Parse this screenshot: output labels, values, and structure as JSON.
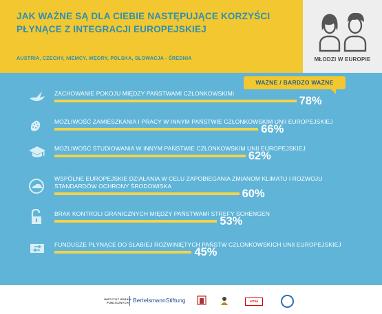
{
  "header": {
    "title": "JAK WAŻNE SĄ DLA CIEBIE NASTĘPUJĄCE KORZYŚCI PŁYNĄCE Z INTEGRACJI EUROPEJSKIEJ",
    "subtitle": "AUSTRIA, CZECHY, NIEMCY, WĘGRY, POLSKA, SŁOWACJA - ŚREDNIA"
  },
  "brand": {
    "label": "MŁODZI W EUROPIE"
  },
  "legend": {
    "label": "WAŻNE / BARDZO WAŻNE"
  },
  "colors": {
    "header": "#f2c72f",
    "panel": "#5fb4d8",
    "bar": "#f2d34a",
    "title": "#2f8fb3"
  },
  "chart_data": {
    "type": "bar",
    "orientation": "horizontal",
    "title": "JAK WAŻNE SĄ DLA CIEBIE NASTĘPUJĄCE KORZYŚCI PŁYNĄCE Z INTEGRACJI EUROPEJSKIEJ",
    "subtitle": "AUSTRIA, CZECHY, NIEMCY, WĘGRY, POLSKA, SŁOWACJA - ŚREDNIA",
    "legend": [
      "WAŻNE / BARDZO WAŻNE"
    ],
    "unit": "%",
    "xlim": [
      0,
      100
    ],
    "categories": [
      "ZACHOWANIE POKOJU MIĘDZY PAŃSTWAMI CZŁONKOWSKIMI",
      "MOŻLIWOŚĆ ZAMIESZKANIA I PRACY W INNYM PAŃSTWIE CZŁONKOWSKIM UNII EUROPEJSKIEJ",
      "MOŻLIWOŚĆ STUDIOWANIA W INNYM PAŃSTWIE CZŁONKOWSKIM UNII EUROPEJSKIEJ",
      "WSPÓLNE EUROPEJSKIE DZIAŁANIA W CELU ZAPOBIEGANIA ZMIANOM KLIMATU I ROZWOJU STANDARDÓW OCHRONY ŚRODOWISKA",
      "BRAK KONTROLI GRANICZNYCH MIĘDZY PAŃSTWAMI STREFY SCHENGEN",
      "FUNDUSZE PŁYNĄCE DO SŁABIEJ ROZWINIĘTYCH PAŃSTW CZŁONKOWSKICH UNII EUROPEJSKIEJ"
    ],
    "values": [
      78,
      66,
      62,
      60,
      53,
      45
    ],
    "value_labels": [
      "78%",
      "66%",
      "62%",
      "60%",
      "53%",
      "45%"
    ],
    "icons": [
      "dove-icon",
      "eu-stars-icon",
      "graduation-cap-icon",
      "globe-cloud-icon",
      "open-lock-icon",
      "money-icon"
    ]
  },
  "footer": {
    "isp": "INSTYTUT SPRAW PUBLICZNYCH",
    "bertelsmann": "BertelsmannStiftung",
    "lit": "LITVA"
  }
}
